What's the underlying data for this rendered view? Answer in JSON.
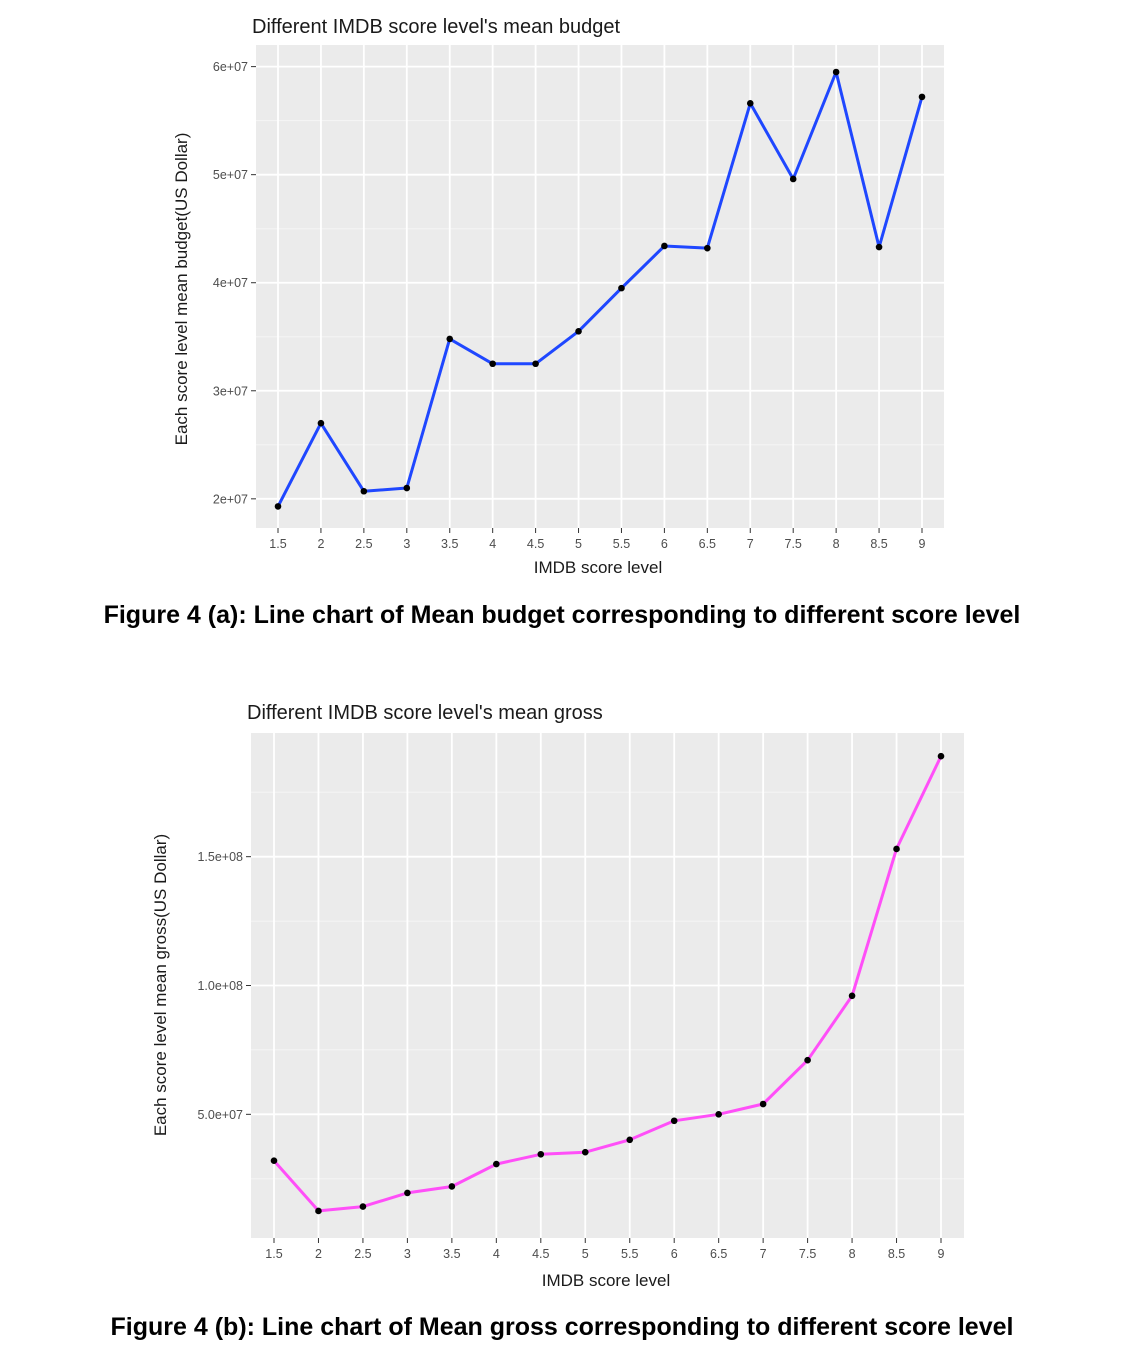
{
  "figures": [
    {
      "caption": "Figure 4 (a): Line chart of Mean budget corresponding to different score level",
      "chart_data": {
        "type": "line",
        "title": "Different IMDB score level's mean budget",
        "xlabel": "IMDB score level",
        "ylabel": "Each score level mean budget(US Dollar)",
        "x": [
          "1.5",
          "2",
          "2.5",
          "3",
          "3.5",
          "4",
          "4.5",
          "5",
          "5.5",
          "6",
          "6.5",
          "7",
          "7.5",
          "8",
          "8.5",
          "9"
        ],
        "y_ticks": [
          20000000,
          30000000,
          40000000,
          50000000,
          60000000
        ],
        "y_tick_labels": [
          "2e+07",
          "3e+07",
          "4e+07",
          "5e+07",
          "6e+07"
        ],
        "ylim": [
          17300000,
          62000000
        ],
        "grid": true,
        "line_color": "#1f47ff",
        "point_color": "#000000",
        "panel_color": "#ebebeb",
        "series": [
          {
            "values": [
              19300000,
              27000000,
              20700000,
              21000000,
              34800000,
              32500000,
              32500000,
              35500000,
              39500000,
              43400000,
              43200000,
              56600000,
              49600000,
              59500000,
              43300000,
              57200000
            ]
          }
        ]
      }
    },
    {
      "caption": "Figure 4 (b): Line chart of Mean gross corresponding to different score level",
      "chart_data": {
        "type": "line",
        "title": "Different IMDB score level's mean gross",
        "xlabel": "IMDB score level",
        "ylabel": "Each score level mean gross(US Dollar)",
        "x": [
          "1.5",
          "2",
          "2.5",
          "3",
          "3.5",
          "4",
          "4.5",
          "5",
          "5.5",
          "6",
          "6.5",
          "7",
          "7.5",
          "8",
          "8.5",
          "9"
        ],
        "y_ticks": [
          50000000,
          100000000,
          150000000
        ],
        "y_tick_labels": [
          "5.0e+07",
          "1.0e+08",
          "1.5e+08"
        ],
        "ylim": [
          2000000,
          198000000
        ],
        "grid": true,
        "line_color": "#ff4ff8",
        "point_color": "#000000",
        "panel_color": "#ebebeb",
        "series": [
          {
            "values": [
              32000000,
              12500000,
              14200000,
              19500000,
              22000000,
              30700000,
              34500000,
              35300000,
              40100000,
              47500000,
              50000000,
              54000000,
              71000000,
              96000000,
              153000000,
              189000000
            ]
          }
        ]
      }
    }
  ]
}
